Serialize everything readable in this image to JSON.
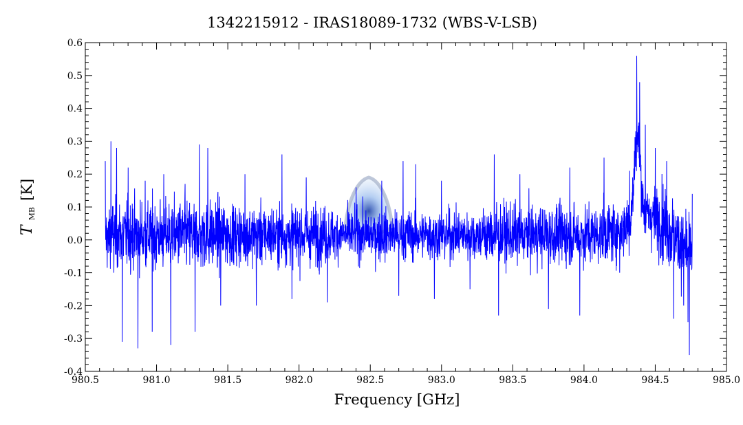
{
  "chart_data": {
    "type": "line",
    "title": "1342215912 - IRAS18089-1732 (WBS-V-LSB)",
    "xlabel": "Frequency [GHz]",
    "ylabel_main": "T",
    "ylabel_sub": "MB",
    "ylabel_unit": "[K]",
    "xlim": [
      980.5,
      985.0
    ],
    "ylim": [
      -0.4,
      0.6
    ],
    "x_ticks": [
      980.5,
      981.0,
      981.5,
      982.0,
      982.5,
      983.0,
      983.5,
      984.0,
      984.5,
      985.0
    ],
    "x_tick_labels": [
      "980.5",
      "981.0",
      "981.5",
      "982.0",
      "982.5",
      "983.0",
      "983.5",
      "984.0",
      "984.5",
      "985.0"
    ],
    "y_ticks": [
      -0.4,
      -0.3,
      -0.2,
      -0.1,
      0.0,
      0.1,
      0.2,
      0.3,
      0.4,
      0.5,
      0.6
    ],
    "y_tick_labels": [
      "-0.4",
      "-0.3",
      "-0.2",
      "-0.1",
      "0.0",
      "0.1",
      "0.2",
      "0.3",
      "0.4",
      "0.5",
      "0.6"
    ],
    "grid": false,
    "series": [
      {
        "color": "#0000ff",
        "x_range": [
          980.64,
          984.76
        ],
        "points": [
          [
            980.64,
            0.24
          ],
          [
            980.66,
            -0.04
          ],
          [
            980.68,
            0.3
          ],
          [
            980.7,
            -0.1
          ],
          [
            980.72,
            0.28
          ],
          [
            980.76,
            -0.31
          ],
          [
            980.8,
            0.22
          ],
          [
            980.83,
            0.11
          ],
          [
            980.87,
            -0.33
          ],
          [
            980.92,
            0.18
          ],
          [
            980.97,
            -0.28
          ],
          [
            981.05,
            0.2
          ],
          [
            981.1,
            -0.32
          ],
          [
            981.2,
            0.17
          ],
          [
            981.27,
            -0.28
          ],
          [
            981.3,
            0.29
          ],
          [
            981.36,
            0.28
          ],
          [
            981.45,
            -0.2
          ],
          [
            981.62,
            0.2
          ],
          [
            981.7,
            -0.2
          ],
          [
            981.88,
            0.26
          ],
          [
            981.95,
            -0.18
          ],
          [
            982.05,
            0.19
          ],
          [
            982.2,
            -0.19
          ],
          [
            982.4,
            0.16
          ],
          [
            982.58,
            0.18
          ],
          [
            982.7,
            -0.17
          ],
          [
            982.73,
            0.24
          ],
          [
            982.82,
            0.23
          ],
          [
            982.95,
            -0.18
          ],
          [
            983.0,
            0.18
          ],
          [
            983.2,
            -0.15
          ],
          [
            983.37,
            0.26
          ],
          [
            983.4,
            -0.23
          ],
          [
            983.55,
            0.2
          ],
          [
            983.75,
            -0.21
          ],
          [
            983.9,
            0.22
          ],
          [
            983.97,
            -0.23
          ],
          [
            984.14,
            0.25
          ],
          [
            984.25,
            -0.1
          ],
          [
            984.32,
            0.21
          ],
          [
            984.37,
            0.56
          ],
          [
            984.39,
            0.48
          ],
          [
            984.43,
            0.35
          ],
          [
            984.5,
            0.28
          ],
          [
            984.58,
            0.24
          ],
          [
            984.63,
            -0.24
          ],
          [
            984.7,
            -0.2
          ],
          [
            984.73,
            -0.25
          ],
          [
            984.74,
            -0.35
          ],
          [
            984.76,
            0.14
          ]
        ]
      }
    ]
  }
}
